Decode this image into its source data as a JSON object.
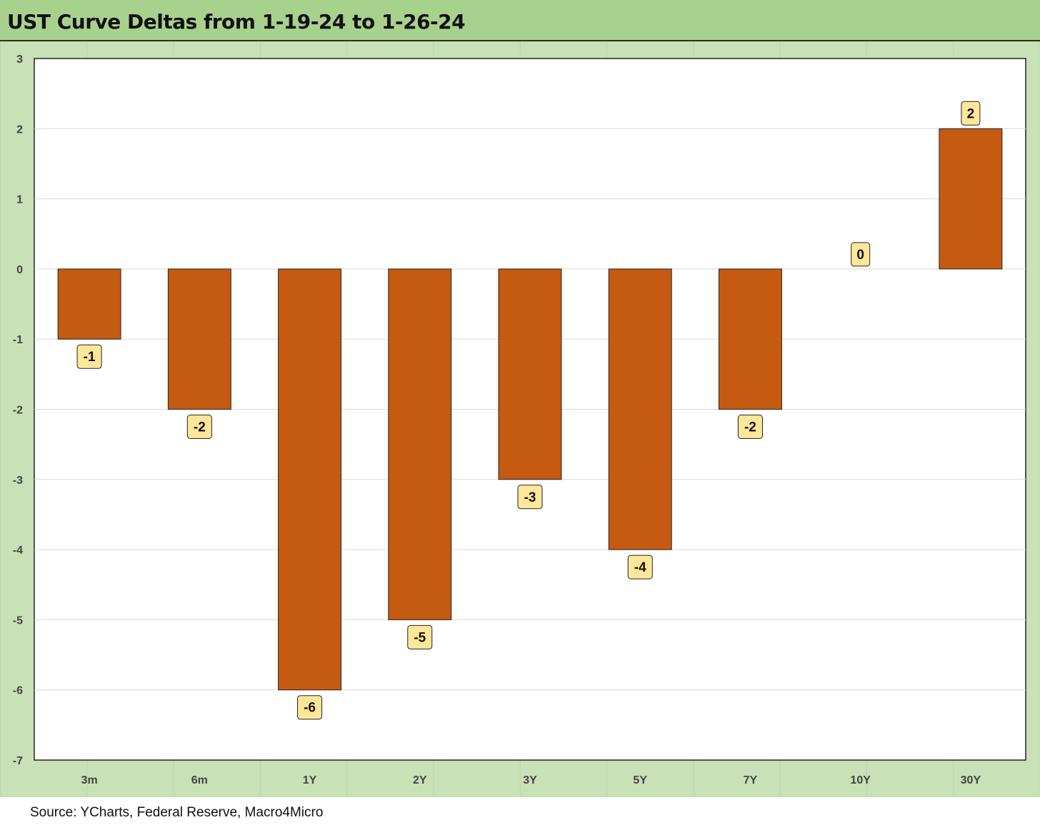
{
  "title": "UST Curve Deltas from 1-19-24 to 1-26-24",
  "source": "Source: YCharts, Federal Reserve, Macro4Micro",
  "colors": {
    "bar": "#c55a11",
    "title_bg": "#a9d18e",
    "frame_bg": "#c8e1b6",
    "label_bg": "#ffe699"
  },
  "chart_data": {
    "type": "bar",
    "title": "UST Curve Deltas from 1-19-24 to 1-26-24",
    "xlabel": "",
    "ylabel": "",
    "categories": [
      "3m",
      "6m",
      "1Y",
      "2Y",
      "3Y",
      "5Y",
      "7Y",
      "10Y",
      "30Y"
    ],
    "values": [
      -1,
      -2,
      -6,
      -5,
      -3,
      -4,
      -2,
      0,
      2
    ],
    "data_labels": [
      "-1",
      "-2",
      "-6",
      "-5",
      "-3",
      "-4",
      "-2",
      "0",
      "2"
    ],
    "ylim": [
      -7,
      3
    ],
    "yticks": [
      "3",
      "2",
      "1",
      "0",
      "-1",
      "-2",
      "-3",
      "-4",
      "-5",
      "-6",
      "-7"
    ],
    "grid": true,
    "legend": "none"
  }
}
